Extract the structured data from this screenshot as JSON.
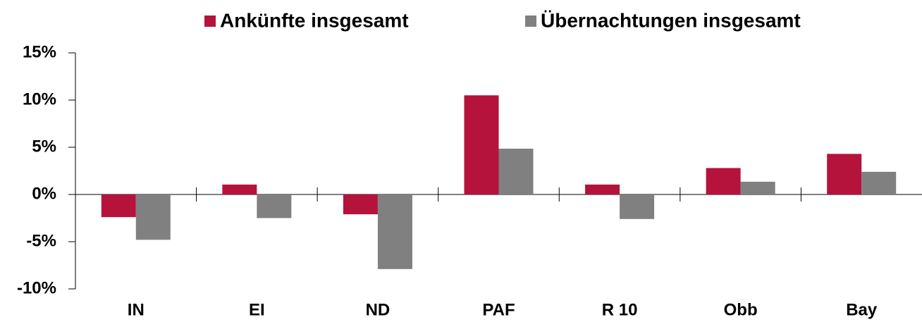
{
  "chart_data": {
    "type": "bar",
    "categories": [
      "IN",
      "EI",
      "ND",
      "PAF",
      "R 10",
      "Obb",
      "Bay"
    ],
    "series": [
      {
        "name": "Ankünfte insgesamt",
        "color": "#b5123c",
        "values": [
          -2.4,
          1.05,
          -2.1,
          10.5,
          1.05,
          2.8,
          4.3
        ]
      },
      {
        "name": "Übernachtungen insgesamt",
        "color": "#808080",
        "values": [
          -4.8,
          -2.5,
          -7.9,
          4.85,
          -2.6,
          1.35,
          2.4
        ]
      }
    ],
    "ylim": [
      -10,
      15
    ],
    "yticks": [
      {
        "value": -10,
        "label": "-10%"
      },
      {
        "value": -5,
        "label": "-5%"
      },
      {
        "value": 0,
        "label": "0%"
      },
      {
        "value": 5,
        "label": "5%"
      },
      {
        "value": 10,
        "label": "10%"
      },
      {
        "value": 15,
        "label": "15%"
      }
    ],
    "grid": false,
    "legend": "top"
  }
}
